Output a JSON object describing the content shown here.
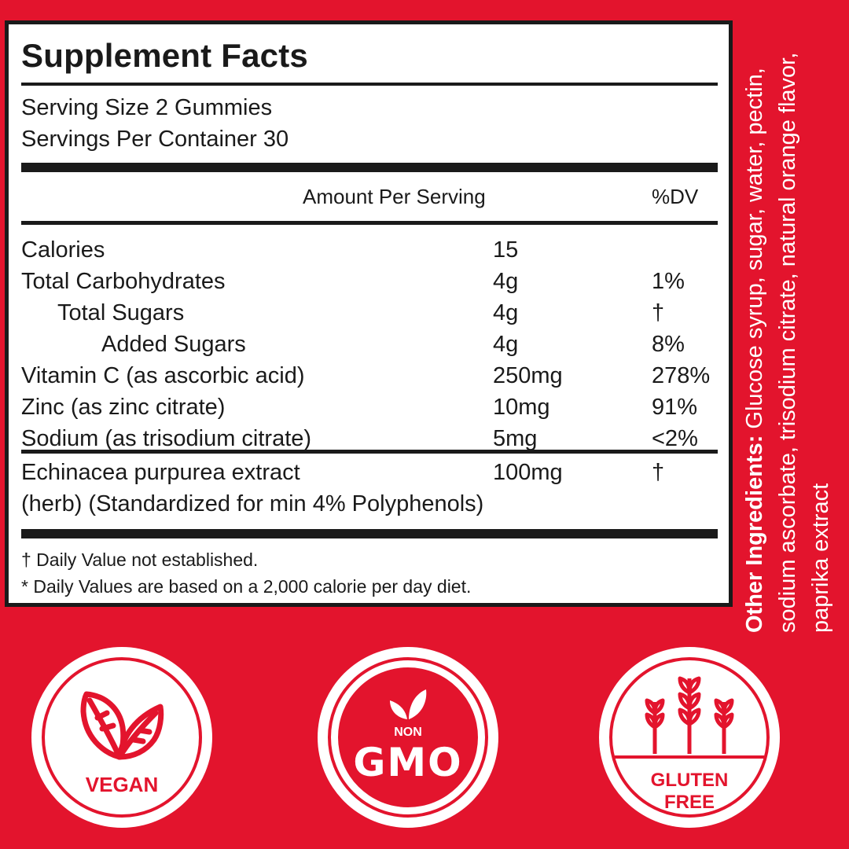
{
  "facts": {
    "title": "Supplement Facts",
    "serving_size": "Serving Size 2 Gummies",
    "servings_per_container": "Servings Per Container 30",
    "header_amount": "Amount Per Serving",
    "header_dv": "%DV",
    "rows": [
      {
        "name": "Calories",
        "amount": "15",
        "dv": ""
      },
      {
        "name": "Total Carbohydrates",
        "amount": "4g",
        "dv": "1%"
      },
      {
        "name": "Total Sugars",
        "amount": "4g",
        "dv": "†"
      },
      {
        "name": "Added Sugars",
        "amount": "4g",
        "dv": "8%"
      },
      {
        "name": "Vitamin C (as ascorbic acid)",
        "amount": "250mg",
        "dv": "278%"
      },
      {
        "name": "Zinc (as zinc citrate)",
        "amount": "10mg",
        "dv": "91%"
      },
      {
        "name": "Sodium (as trisodium citrate)",
        "amount": "5mg",
        "dv": "<2%"
      }
    ],
    "herb": {
      "line1": "Echinacea purpurea extract",
      "line2": "(herb) (Standardized for min 4% Polyphenols)",
      "amount": "100mg",
      "dv": "†"
    },
    "notes": [
      "† Daily Value not established.",
      "*  Daily Values are based on a 2,000 calorie per day diet."
    ]
  },
  "ingredients": {
    "label": "Other Ingredients:",
    "text": "Glucose syrup, sugar, water, pectin, sodium ascorbate, trisodium citrate, natural orange flavor, paprika extract"
  },
  "badges": {
    "vegan": {
      "label": "VEGAN",
      "icon": "leaf-icon"
    },
    "gmo": {
      "top": "NON",
      "label": "GMO",
      "icon": "sprout-icon"
    },
    "gluten": {
      "line1": "GLUTEN",
      "line2": "FREE",
      "icon": "wheat-icon"
    }
  },
  "colors": {
    "background": "#e3142d",
    "panel": "#ffffff",
    "ink": "#1a1a1a"
  }
}
